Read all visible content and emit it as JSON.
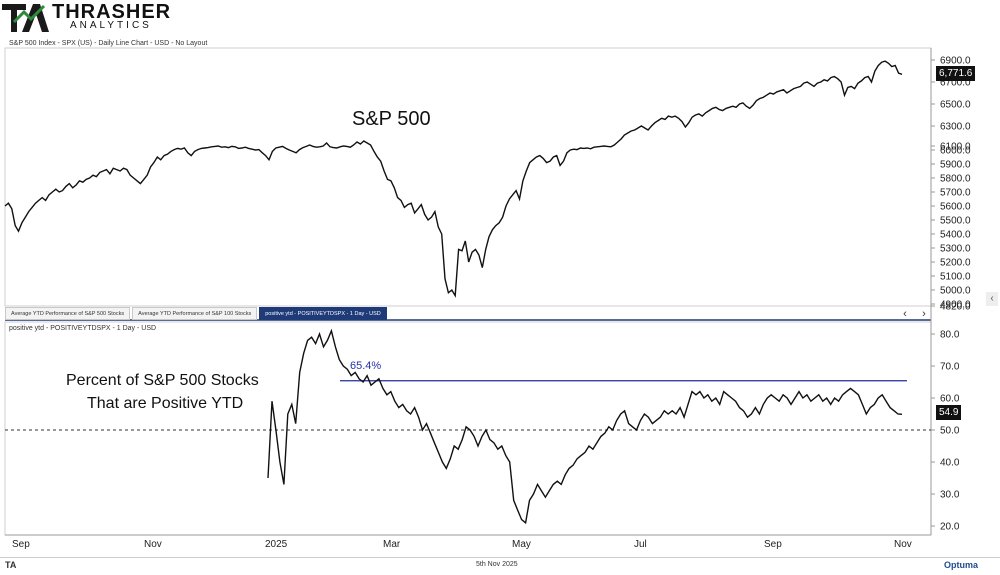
{
  "logo": {
    "brand": "THRASHER",
    "sub": "ANALYTICS",
    "mark": "TA"
  },
  "top_panel": {
    "title": "S&P 500 Index - SPX (US) - Daily Line Chart - USD - No Layout",
    "annotation": "S&P 500",
    "last_value": "6,771.6"
  },
  "tabs": [
    {
      "label": "Average YTD Performance of S&P 500 Stocks",
      "active": false
    },
    {
      "label": "Average YTD Performance of S&P 100 Stocks",
      "active": false
    },
    {
      "label": "positive ytd - POSITIVEYTDSPX - 1 Day - USD",
      "active": true
    }
  ],
  "nav": {
    "prev": "‹",
    "next": "›",
    "collapse": "‹"
  },
  "bottom_panel": {
    "title": "positive ytd - POSITIVEYTDSPX - 1 Day - USD",
    "annotation_line1": "Percent of S&P 500 Stocks",
    "annotation_line2": "That are Positive YTD",
    "level_label": "65.4%",
    "last_value": "54.9"
  },
  "footer": {
    "date": "5th Nov 2025",
    "left": "TA",
    "right": "Optuma"
  },
  "x_axis": {
    "ticks": [
      "Sep",
      "Nov",
      "2025",
      "Mar",
      "May",
      "Jul",
      "Sep",
      "Nov"
    ]
  },
  "chart_data": [
    {
      "type": "line",
      "series": [
        {
          "name": "S&P 500 Index - SPX (US)",
          "values": [
            5600,
            5620,
            5580,
            5460,
            5420,
            5480,
            5520,
            5560,
            5590,
            5620,
            5640,
            5660,
            5640,
            5680,
            5700,
            5720,
            5700,
            5710,
            5740,
            5760,
            5730,
            5750,
            5780,
            5770,
            5790,
            5800,
            5820,
            5810,
            5840,
            5850,
            5860,
            5830,
            5870,
            5860,
            5850,
            5870,
            5860,
            5820,
            5800,
            5780,
            5760,
            5790,
            5820,
            5880,
            5910,
            5950,
            5930,
            5960,
            5970,
            5990,
            6010,
            6040,
            6020,
            6050,
            5980,
            5960,
            5990,
            6010,
            6040,
            6050,
            6060,
            6080,
            6090,
            6100,
            6070,
            6080,
            6060,
            6090,
            6080,
            6040,
            6050,
            6070,
            6040,
            6020,
            6000,
            6010,
            5980,
            5960,
            5930,
            5990,
            6050,
            6070,
            6090,
            6040,
            6000,
            5990,
            5980,
            6010,
            6060,
            6090,
            6110,
            6090,
            6070,
            6080,
            6100,
            6130,
            6080,
            6060,
            6050,
            6080,
            6100,
            6090,
            6070,
            6110,
            6140,
            6120,
            6150,
            6130,
            6110,
            5990,
            5950,
            5920,
            5850,
            5790,
            5780,
            5730,
            5660,
            5640,
            5590,
            5610,
            5620,
            5550,
            5580,
            5610,
            5540,
            5500,
            5520,
            5560,
            5450,
            5400,
            5080,
            4980,
            5000,
            4960,
            5290,
            5280,
            5350,
            5200,
            5270,
            5290,
            5250,
            5160,
            5290,
            5380,
            5430,
            5460,
            5480,
            5520,
            5600,
            5650,
            5680,
            5710,
            5650,
            5780,
            5850,
            5910,
            5930,
            5950,
            5960,
            5940,
            5910,
            5920,
            5950,
            5960,
            5890,
            5920,
            5980,
            6000,
            6020,
            6010,
            6050,
            6040,
            6050,
            6030,
            6070,
            6080,
            6090,
            6100,
            6090,
            6080,
            6110,
            6140,
            6170,
            6210,
            6230,
            6250,
            6260,
            6280,
            6300,
            6280,
            6260,
            6300,
            6330,
            6350,
            6370,
            6360,
            6390,
            6380,
            6390,
            6370,
            6340,
            6290,
            6330,
            6380,
            6400,
            6410,
            6390,
            6420,
            6440,
            6460,
            6470,
            6450,
            6440,
            6460,
            6470,
            6480,
            6470,
            6500,
            6510,
            6480,
            6460,
            6490,
            6530,
            6550,
            6560,
            6580,
            6600,
            6590,
            6610,
            6620,
            6630,
            6600,
            6620,
            6640,
            6650,
            6660,
            6690,
            6700,
            6680,
            6660,
            6690,
            6700,
            6720,
            6710,
            6740,
            6750,
            6730,
            6700,
            6580,
            6650,
            6660,
            6640,
            6690,
            6710,
            6740,
            6750,
            6700,
            6800,
            6850,
            6880,
            6890,
            6870,
            6840,
            6850,
            6780,
            6770
          ]
        }
      ],
      "x_range": [
        "2024-09",
        "2025-11"
      ],
      "ylim": [
        4820,
        7000
      ],
      "y_ticks": [
        4820,
        4900,
        5000,
        5100,
        5200,
        5300,
        5400,
        5500,
        5600,
        5700,
        5800,
        5900,
        6000,
        6100,
        6300,
        6500,
        6700,
        6900
      ],
      "grid": false
    },
    {
      "type": "line",
      "series": [
        {
          "name": "positive ytd - POSITIVEYTDSPX",
          "values": [
            35,
            59,
            50,
            40,
            33,
            55,
            58,
            52,
            68,
            74,
            78,
            79,
            77,
            80,
            76,
            78,
            81,
            76,
            72,
            70,
            69,
            67,
            68,
            66,
            65,
            67,
            64,
            65,
            66,
            63,
            61,
            62,
            59,
            57,
            58,
            56,
            55,
            57,
            54,
            50,
            52,
            49,
            46,
            43,
            40,
            38,
            41,
            45,
            44,
            47,
            51,
            50,
            48,
            45,
            48,
            50,
            47,
            46,
            44,
            45,
            42,
            40,
            28,
            25,
            22,
            21,
            28,
            30,
            33,
            31,
            29,
            31,
            33,
            34,
            33,
            36,
            38,
            39,
            41,
            42,
            43,
            45,
            44,
            46,
            48,
            49,
            51,
            50,
            53,
            55,
            56,
            52,
            51,
            50,
            53,
            55,
            54,
            52,
            53,
            54,
            56,
            55,
            56,
            55,
            57,
            54,
            58,
            62,
            61,
            62,
            60,
            61,
            59,
            60,
            58,
            62,
            61,
            60,
            59,
            57,
            56,
            54,
            55,
            57,
            55,
            58,
            60,
            61,
            60,
            59,
            61,
            60,
            58,
            60,
            62,
            60,
            61,
            59,
            60,
            61,
            59,
            60,
            58,
            60,
            59,
            61,
            62,
            63,
            62,
            61,
            58,
            55,
            57,
            58,
            60,
            61,
            59,
            57,
            56,
            55,
            54.9
          ]
        }
      ],
      "level_line": 65.4,
      "reference_line": 50,
      "ylim": [
        18,
        83
      ],
      "y_ticks": [
        20,
        30,
        40,
        50,
        60,
        70,
        80
      ],
      "grid": false
    }
  ]
}
